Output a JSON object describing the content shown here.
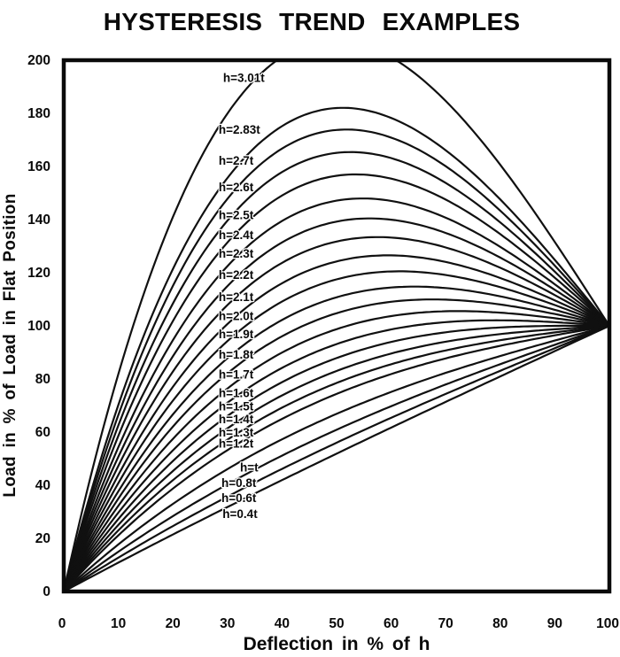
{
  "chart_data": {
    "type": "line",
    "title": "HYSTERESIS TREND EXAMPLES",
    "xlabel": "Deflection  in % of h",
    "ylabel": "Load in % of Load in Flat Position",
    "xlim": [
      0,
      100
    ],
    "ylim": [
      0,
      200
    ],
    "x_ticks": [
      0,
      10,
      20,
      30,
      40,
      50,
      60,
      70,
      80,
      90,
      100
    ],
    "y_ticks": [
      0,
      20,
      40,
      60,
      80,
      100,
      120,
      140,
      160,
      180,
      200
    ],
    "grid": false,
    "legend": "inline labels next to each curve",
    "line_color": "#101010",
    "frame_color": "#0a0a0a",
    "background": "#ffffff",
    "notes": "Family of disc-spring (Belleville washer) load-deflection trend curves for cone height h expressed in multiples of thickness t. Every curve starts at (0,0) and converges at (100,100). Curves with h>1.4t overshoot 100% and come back down; the h=3.01t curve is clipped by the plot top at 200%.",
    "model_note": "Curves follow y% = 100*[x + A*x*(x-1)*(x-2)], x = deflection fraction 0..1; A per series below; values sampled at x_samples.",
    "x_samples": [
      0,
      10,
      20,
      30,
      40,
      50,
      60,
      70,
      80,
      90,
      100
    ],
    "clip_top_at": 200,
    "series": [
      {
        "label": "h=3.01t",
        "h_over_t": 3.01,
        "A": 4.2,
        "peak": [
          49.6,
          207.5
        ],
        "clipped_at_top": true,
        "values": [
          0,
          81.8,
          141.0,
          180.0,
          201.3,
          207.5,
          201.1,
          184.7,
          160.6,
          131.6,
          100
        ],
        "label_pos": [
          29.2,
          193.5
        ]
      },
      {
        "label": "h=2.83t",
        "h_over_t": 2.83,
        "A": 3.52,
        "peak": [
          51.1,
          182.0
        ],
        "clipped_at_top": false,
        "values": [
          0,
          70.2,
          121.4,
          155.7,
          175.2,
          182.0,
          178.3,
          166.1,
          147.6,
          124.8,
          100
        ],
        "label_pos": [
          28.4,
          174.0
        ]
      },
      {
        "label": "h=2.7t",
        "h_over_t": 2.7,
        "A": 3.3,
        "peak": [
          51.8,
          174.0
        ],
        "clipped_at_top": false,
        "values": [
          0,
          66.4,
          115.0,
          147.8,
          166.7,
          173.8,
          170.9,
          160.1,
          143.4,
          122.7,
          100
        ],
        "label_pos": [
          28.4,
          162.3
        ]
      },
      {
        "label": "h=2.6t",
        "h_over_t": 2.6,
        "A": 3.07,
        "peak": [
          52.6,
          165.4
        ],
        "clipped_at_top": false,
        "values": [
          0,
          62.5,
          108.4,
          139.6,
          157.9,
          165.1,
          163.1,
          153.8,
          138.9,
          120.4,
          100
        ],
        "label_pos": [
          28.4,
          152.3
        ]
      },
      {
        "label": "h=2.5t",
        "h_over_t": 2.5,
        "A": 2.84,
        "peak": [
          53.5,
          157.0
        ],
        "clipped_at_top": false,
        "values": [
          0,
          58.6,
          101.8,
          131.4,
          149.1,
          156.5,
          155.4,
          147.5,
          134.5,
          118.1,
          100
        ],
        "label_pos": [
          28.4,
          141.7
        ]
      },
      {
        "label": "h=2.4t",
        "h_over_t": 2.4,
        "A": 2.59,
        "peak": [
          54.8,
          148.0
        ],
        "clipped_at_top": false,
        "values": [
          0,
          54.3,
          94.6,
          122.5,
          139.5,
          147.1,
          147.0,
          140.7,
          129.7,
          115.6,
          100
        ],
        "label_pos": [
          28.4,
          134.3
        ]
      },
      {
        "label": "h=2.3t",
        "h_over_t": 2.3,
        "A": 2.38,
        "peak": [
          56.0,
          140.4
        ],
        "clipped_at_top": false,
        "values": [
          0,
          50.7,
          88.5,
          115.0,
          131.4,
          139.3,
          140.0,
          135.0,
          125.7,
          113.6,
          100
        ],
        "label_pos": [
          28.4,
          127.3
        ]
      },
      {
        "label": "h=2.2t",
        "h_over_t": 2.2,
        "A": 2.18,
        "peak": [
          57.5,
          133.4
        ],
        "clipped_at_top": false,
        "values": [
          0,
          47.3,
          82.8,
          107.8,
          123.7,
          131.8,
          133.2,
          129.5,
          121.9,
          111.6,
          100
        ],
        "label_pos": [
          28.4,
          119.3
        ]
      },
      {
        "label": "h=2.1t",
        "h_over_t": 2.1,
        "A": 1.98,
        "peak": [
          59.4,
          126.5
        ],
        "clipped_at_top": false,
        "values": [
          0,
          43.9,
          77.0,
          100.7,
          116.0,
          124.3,
          126.5,
          124.1,
          118.0,
          109.6,
          100
        ],
        "label_pos": [
          28.4,
          111.0
        ]
      },
      {
        "label": "h=2.0t",
        "h_over_t": 2.0,
        "A": 1.8,
        "peak": [
          61.5,
          120.5
        ],
        "clipped_at_top": false,
        "values": [
          0,
          40.8,
          71.8,
          94.3,
          109.1,
          117.5,
          120.5,
          119.1,
          114.6,
          107.8,
          100
        ],
        "label_pos": [
          28.4,
          103.7
        ]
      },
      {
        "label": "h=1.9t",
        "h_over_t": 1.9,
        "A": 1.62,
        "peak": [
          64.3,
          114.8
        ],
        "clipped_at_top": false,
        "values": [
          0,
          37.7,
          66.7,
          87.8,
          102.2,
          110.8,
          114.4,
          114.2,
          111.1,
          106.0,
          100
        ],
        "label_pos": [
          28.4,
          97.0
        ]
      },
      {
        "label": "h=1.8t",
        "h_over_t": 1.8,
        "A": 1.46,
        "peak": [
          67.6,
          109.9
        ],
        "clipped_at_top": false,
        "values": [
          0,
          35.0,
          62.0,
          82.1,
          96.1,
          104.8,
          109.1,
          109.9,
          108.0,
          104.5,
          100
        ],
        "label_pos": [
          28.4,
          89.3
        ]
      },
      {
        "label": "h=1.7t",
        "h_over_t": 1.7,
        "A": 1.3,
        "peak": [
          72.2,
          105.6
        ],
        "clipped_at_top": false,
        "values": [
          0,
          32.2,
          57.4,
          76.4,
          89.9,
          98.8,
          103.7,
          105.5,
          105.0,
          102.9,
          100
        ],
        "label_pos": [
          28.4,
          81.7
        ]
      },
      {
        "label": "h=1.6t",
        "h_over_t": 1.6,
        "A": 1.15,
        "peak": [
          79.1,
          102.1
        ],
        "clipped_at_top": false,
        "values": [
          0,
          29.7,
          53.1,
          71.1,
          84.2,
          93.1,
          98.6,
          101.4,
          102.1,
          101.4,
          100
        ],
        "label_pos": [
          28.4,
          74.7
        ]
      },
      {
        "label": "h=1.5t",
        "h_over_t": 1.5,
        "A": 1.01,
        "peak": [
          93.4,
          100.1
        ],
        "clipped_at_top": false,
        "values": [
          0,
          27.3,
          49.1,
          66.1,
          78.8,
          87.9,
          93.9,
          97.6,
          99.4,
          100.0,
          100
        ],
        "label_pos": [
          28.4,
          69.7
        ]
      },
      {
        "label": "h=1.4t",
        "h_over_t": 1.4,
        "A": 0.88,
        "peak": null,
        "clipped_at_top": false,
        "values": [
          0,
          25.0,
          45.3,
          61.4,
          73.8,
          83.0,
          89.6,
          94.0,
          96.9,
          98.7,
          100
        ],
        "label_pos": [
          28.4,
          65.0
        ]
      },
      {
        "label": "h=1.3t",
        "h_over_t": 1.3,
        "A": 0.76,
        "peak": null,
        "clipped_at_top": false,
        "values": [
          0,
          23.0,
          41.9,
          57.1,
          69.2,
          78.5,
          85.5,
          90.7,
          94.6,
          97.5,
          100
        ],
        "label_pos": [
          28.4,
          60.0
        ]
      },
      {
        "label": "h=1.2t",
        "h_over_t": 1.2,
        "A": 0.65,
        "peak": null,
        "clipped_at_top": false,
        "values": [
          0,
          21.1,
          38.7,
          53.2,
          65.0,
          74.4,
          81.8,
          87.7,
          92.5,
          96.4,
          100
        ],
        "label_pos": [
          28.4,
          55.7
        ]
      },
      {
        "label": "h=t",
        "h_over_t": 1.0,
        "A": 0.45,
        "peak": null,
        "clipped_at_top": false,
        "values": [
          0,
          17.7,
          33.0,
          46.1,
          57.3,
          66.9,
          75.1,
          82.3,
          88.6,
          94.5,
          100
        ],
        "label_pos": [
          32.3,
          46.7
        ]
      },
      {
        "label": "h=0.8t",
        "h_over_t": 0.8,
        "A": 0.29,
        "peak": null,
        "clipped_at_top": false,
        "values": [
          0,
          15.0,
          28.4,
          40.4,
          51.1,
          60.9,
          69.7,
          77.9,
          85.6,
          92.9,
          100
        ],
        "label_pos": [
          28.9,
          41.0
        ]
      },
      {
        "label": "h=0.6t",
        "h_over_t": 0.6,
        "A": 0.16,
        "peak": null,
        "clipped_at_top": false,
        "values": [
          0,
          12.7,
          24.6,
          35.7,
          46.1,
          56.0,
          65.4,
          74.4,
          83.1,
          91.6,
          100
        ],
        "label_pos": [
          28.9,
          35.3
        ]
      },
      {
        "label": "h=0.4t",
        "h_over_t": 0.4,
        "A": 0.05,
        "peak": null,
        "clipped_at_top": false,
        "values": [
          0,
          10.9,
          21.4,
          31.8,
          41.9,
          51.9,
          61.7,
          71.4,
          81.0,
          90.5,
          100
        ],
        "label_pos": [
          29.1,
          29.3
        ]
      }
    ]
  }
}
